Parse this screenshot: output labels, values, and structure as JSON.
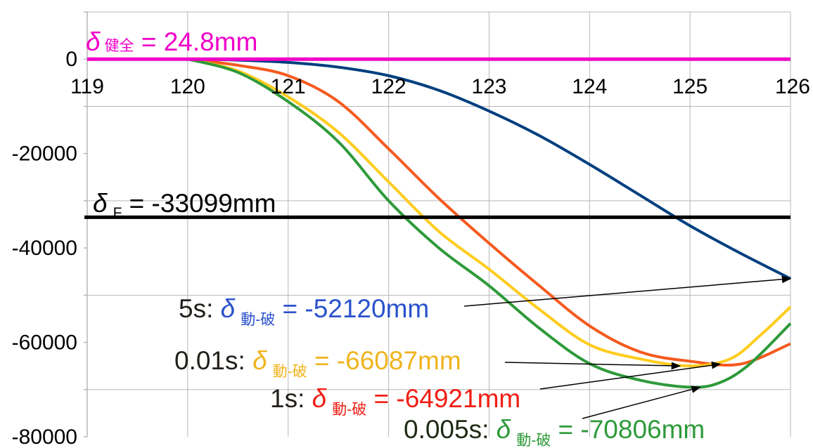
{
  "chart_data": {
    "type": "line",
    "title": "",
    "xlabel": "",
    "ylabel": "",
    "xlim": [
      119,
      126
    ],
    "ylim": [
      -80000,
      10000
    ],
    "x_ticks": [
      "119",
      "120",
      "121",
      "122",
      "123",
      "124",
      "125",
      "126"
    ],
    "y_ticks": [
      "0",
      "-20000",
      "-40000",
      "-60000",
      "-80000"
    ],
    "grid": true,
    "series": [
      {
        "color": "#003f7f",
        "x": [
          120,
          120.5,
          121,
          121.5,
          122,
          122.5,
          123,
          123.5,
          124,
          124.5,
          125,
          125.5,
          126
        ],
        "y": [
          0,
          -200,
          -700,
          -1700,
          -3500,
          -6600,
          -11000,
          -16200,
          -22300,
          -28800,
          -35300,
          -41100,
          -46500
        ]
      },
      {
        "color": "#f55a1e",
        "x": [
          120,
          120.5,
          121,
          121.5,
          122,
          122.5,
          123,
          123.5,
          124,
          124.5,
          125,
          125.5,
          126
        ],
        "y": [
          0,
          -1300,
          -3500,
          -9000,
          -19000,
          -29500,
          -39000,
          -48000,
          -56500,
          -62000,
          -64000,
          -64600,
          -60300
        ]
      },
      {
        "color": "#ffcc1e",
        "x": [
          120,
          120.5,
          121,
          121.5,
          122,
          122.5,
          123,
          123.5,
          124,
          124.5,
          125,
          125.4,
          125.7,
          126
        ],
        "y": [
          0,
          -2500,
          -8000,
          -15500,
          -26000,
          -36500,
          -44500,
          -53000,
          -60500,
          -63500,
          -65000,
          -63500,
          -58500,
          -52500
        ]
      },
      {
        "color": "#2e9a3a",
        "x": [
          120,
          120.5,
          121,
          121.5,
          122,
          122.5,
          123,
          123.5,
          124,
          124.5,
          125,
          125.3,
          125.6,
          126
        ],
        "y": [
          0,
          -2800,
          -9000,
          -17500,
          -30000,
          -40000,
          -48000,
          -57000,
          -64500,
          -68000,
          -69500,
          -68500,
          -64500,
          -56000
        ]
      }
    ],
    "reference_lines": [
      {
        "y": 0,
        "color": "#f000c8"
      },
      {
        "y": -33500,
        "color": "#000000"
      }
    ],
    "annotations": [
      {
        "prefix": "",
        "symbol": "δ",
        "subscript": "健全",
        "text": " = 24.8mm",
        "color": "#f000c8"
      },
      {
        "prefix": "",
        "symbol": "δ",
        "subscript": "F",
        "text": " = -33099mm",
        "color": "#000000"
      },
      {
        "prefix": "5s: ",
        "symbol": "δ",
        "subscript": "動-破",
        "text": " = -52120mm",
        "color": "#2a52cc",
        "arrow_to": [
          126,
          -46500
        ]
      },
      {
        "prefix": "0.01s: ",
        "symbol": "δ",
        "subscript": "動-破",
        "text": " = -66087mm",
        "color": "#f0b41e",
        "arrow_to": [
          124.9,
          -65000
        ]
      },
      {
        "prefix": "1s: ",
        "symbol": "δ",
        "subscript": "動-破",
        "text": " = -64921mm",
        "color": "#f01e14",
        "arrow_to": [
          125.3,
          -64600
        ]
      },
      {
        "prefix": "0.005s: ",
        "symbol": "δ",
        "subscript": "動-破",
        "text": " = -70806mm",
        "color": "#2e9a3a",
        "arrow_to": [
          125.1,
          -69500
        ]
      }
    ]
  }
}
